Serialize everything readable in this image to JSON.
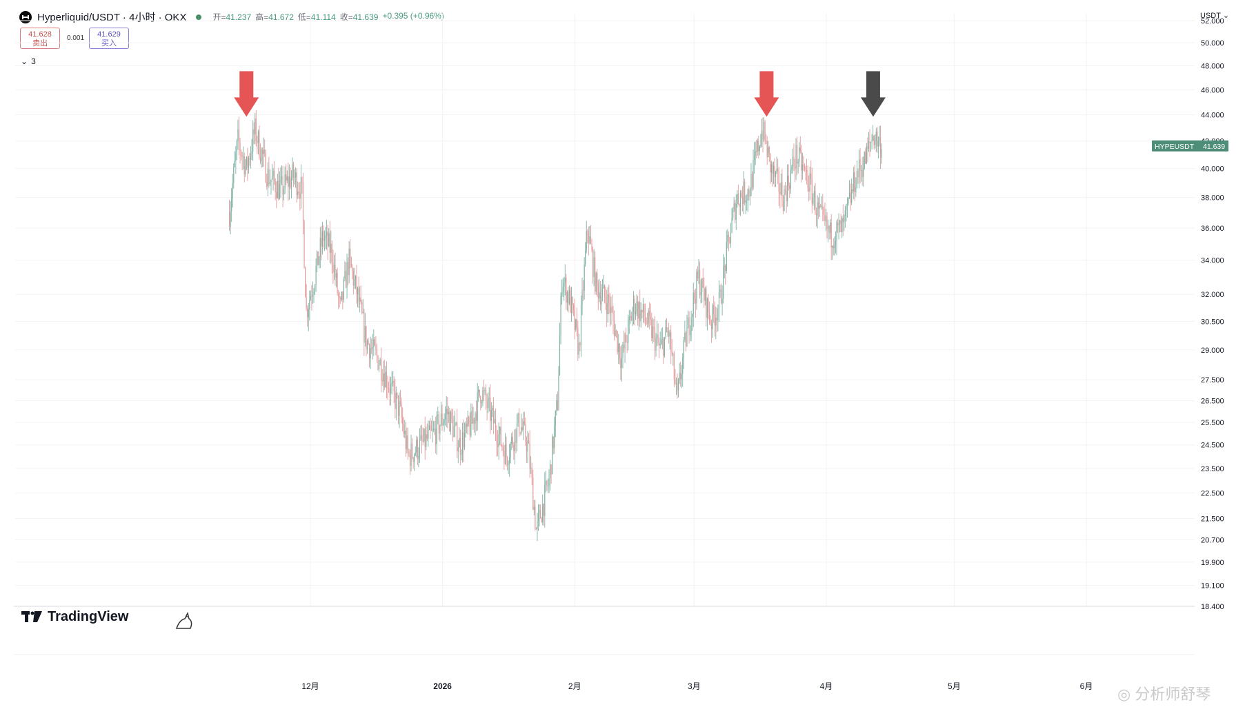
{
  "header": {
    "title": "Hyperliquid/USDT · 4小时 · OKX",
    "ohlc": [
      {
        "label": "开=",
        "value": "41.237"
      },
      {
        "label": "高=",
        "value": "41.672"
      },
      {
        "label": "低=",
        "value": "41.114"
      },
      {
        "label": "收=",
        "value": "41.639"
      },
      {
        "label": "",
        "value": "+0.395 (+0.96%)"
      }
    ]
  },
  "trade": {
    "sell_price": "41.628",
    "sell_label": "卖出",
    "spread": "0.001",
    "buy_price": "41.629",
    "buy_label": "买入"
  },
  "indicators": {
    "collapsed_count": "3"
  },
  "currency_selector": "USDT",
  "branding": {
    "logo_text": "TradingView"
  },
  "watermark": "分析师舒琴",
  "colors": {
    "up": "#7fb2a5",
    "down": "#e59a9a",
    "arrow_red": "#e55555",
    "arrow_dark": "#4a4a4a",
    "price_label_bg": "#4e8d78"
  },
  "chart_data": {
    "type": "candlestick",
    "symbol": "HYPEUSDT",
    "current_price": "41.639",
    "y_axis": {
      "scale": "log",
      "ylim": [
        18.4,
        52.0
      ],
      "ticks": [
        "52.000",
        "50.000",
        "48.000",
        "46.000",
        "44.000",
        "42.000",
        "40.000",
        "38.000",
        "36.000",
        "34.000",
        "32.000",
        "30.500",
        "29.000",
        "27.500",
        "26.500",
        "25.500",
        "24.500",
        "23.500",
        "22.500",
        "21.500",
        "20.700",
        "19.900",
        "19.100",
        "18.400"
      ]
    },
    "x_axis": {
      "tick_labels": [
        "12月",
        "2026",
        "2月",
        "3月",
        "4月",
        "5月",
        "6月"
      ],
      "tick_dates": [
        "2025-12-01",
        "2026-01-01",
        "2026-02-01",
        "2026-03-01",
        "2026-04-01",
        "2026-05-01",
        "2026-06-01"
      ]
    },
    "close_path": [
      [
        "2025-11-12",
        37.0
      ],
      [
        "2025-11-14",
        42.0
      ],
      [
        "2025-11-16",
        40.0
      ],
      [
        "2025-11-18",
        42.8
      ],
      [
        "2025-11-21",
        39.5
      ],
      [
        "2025-11-24",
        38.5
      ],
      [
        "2025-11-27",
        39.5
      ],
      [
        "2025-11-29",
        38.5
      ],
      [
        "2025-11-30",
        31.0
      ],
      [
        "2025-12-02",
        33.0
      ],
      [
        "2025-12-04",
        35.5
      ],
      [
        "2025-12-06",
        34.5
      ],
      [
        "2025-12-08",
        31.0
      ],
      [
        "2025-12-10",
        34.0
      ],
      [
        "2025-12-12",
        32.0
      ],
      [
        "2025-12-14",
        29.5
      ],
      [
        "2025-12-17",
        28.5
      ],
      [
        "2025-12-20",
        27.0
      ],
      [
        "2025-12-22",
        26.0
      ],
      [
        "2025-12-24",
        24.0
      ],
      [
        "2025-12-27",
        24.5
      ],
      [
        "2025-12-30",
        25.0
      ],
      [
        "2026-01-02",
        26.0
      ],
      [
        "2026-01-05",
        24.5
      ],
      [
        "2026-01-08",
        25.5
      ],
      [
        "2026-01-10",
        27.0
      ],
      [
        "2026-01-13",
        25.5
      ],
      [
        "2026-01-16",
        24.0
      ],
      [
        "2026-01-19",
        25.5
      ],
      [
        "2026-01-21",
        24.5
      ],
      [
        "2026-01-23",
        21.0
      ],
      [
        "2026-01-26",
        23.0
      ],
      [
        "2026-01-28",
        26.5
      ],
      [
        "2026-01-29",
        33.0
      ],
      [
        "2026-01-31",
        31.5
      ],
      [
        "2026-02-02",
        29.0
      ],
      [
        "2026-02-04",
        36.0
      ],
      [
        "2026-02-06",
        32.5
      ],
      [
        "2026-02-09",
        31.5
      ],
      [
        "2026-02-12",
        28.5
      ],
      [
        "2026-02-15",
        31.5
      ],
      [
        "2026-02-18",
        30.5
      ],
      [
        "2026-02-21",
        29.0
      ],
      [
        "2026-02-23",
        30.0
      ],
      [
        "2026-02-25",
        26.5
      ],
      [
        "2026-02-27",
        29.5
      ],
      [
        "2026-03-02",
        33.0
      ],
      [
        "2026-03-05",
        30.5
      ],
      [
        "2026-03-07",
        31.5
      ],
      [
        "2026-03-09",
        35.0
      ],
      [
        "2026-03-11",
        38.0
      ],
      [
        "2026-03-14",
        38.5
      ],
      [
        "2026-03-17",
        43.0
      ],
      [
        "2026-03-19",
        40.0
      ],
      [
        "2026-03-22",
        38.0
      ],
      [
        "2026-03-25",
        41.0
      ],
      [
        "2026-03-28",
        39.0
      ],
      [
        "2026-03-30",
        37.0
      ],
      [
        "2026-04-02",
        35.5
      ],
      [
        "2026-04-05",
        36.0
      ],
      [
        "2026-04-08",
        39.5
      ],
      [
        "2026-04-10",
        40.5
      ],
      [
        "2026-04-12",
        42.5
      ],
      [
        "2026-04-14",
        41.6
      ]
    ],
    "annotations": [
      {
        "type": "down-arrow",
        "date": "2025-11-16",
        "price": 44.5,
        "color": "red"
      },
      {
        "type": "down-arrow",
        "date": "2026-03-18",
        "price": 44.5,
        "color": "red"
      },
      {
        "type": "down-arrow",
        "date": "2026-04-12",
        "price": 44.5,
        "color": "dark-gray"
      }
    ],
    "grid": true
  }
}
